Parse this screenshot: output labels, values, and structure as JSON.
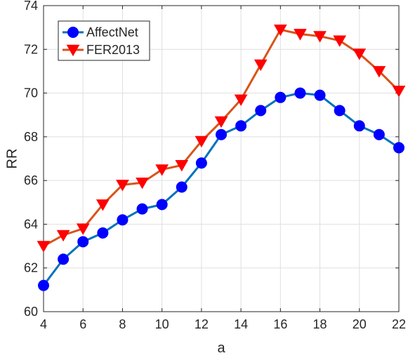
{
  "chart_data": {
    "type": "line",
    "title": "",
    "xlabel": "a",
    "ylabel": "RR",
    "xlim": [
      4,
      22
    ],
    "ylim": [
      60,
      74
    ],
    "xticks": [
      4,
      6,
      8,
      10,
      12,
      14,
      16,
      18,
      20,
      22
    ],
    "yticks": [
      60,
      62,
      64,
      66,
      68,
      70,
      72,
      74
    ],
    "grid": true,
    "legend_position": "top-left",
    "x": [
      4,
      5,
      6,
      7,
      8,
      9,
      10,
      11,
      12,
      13,
      14,
      15,
      16,
      17,
      18,
      19,
      20,
      21,
      22
    ],
    "series": [
      {
        "name": "AffectNet",
        "color": "#0072BD",
        "marker": "circle",
        "marker_color": "#0000FF",
        "values": [
          61.2,
          62.4,
          63.2,
          63.6,
          64.2,
          64.7,
          64.9,
          65.7,
          66.8,
          68.1,
          68.5,
          69.2,
          69.8,
          70.0,
          69.9,
          69.2,
          68.5,
          68.1,
          67.5
        ]
      },
      {
        "name": "FER2013",
        "color": "#D95319",
        "marker": "triangle-down",
        "marker_color": "#FF0000",
        "values": [
          63.0,
          63.5,
          63.8,
          64.9,
          65.8,
          65.9,
          66.5,
          66.7,
          67.8,
          68.7,
          69.7,
          71.3,
          72.9,
          72.7,
          72.6,
          72.4,
          71.8,
          71.0,
          70.1
        ]
      }
    ]
  }
}
